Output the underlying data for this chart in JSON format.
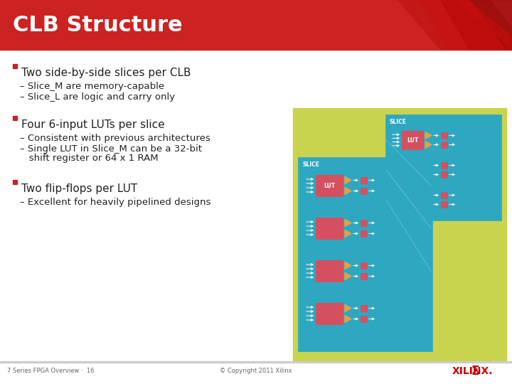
{
  "title": "CLB Structure",
  "title_color": "#FFFFFF",
  "title_bg_color": "#CC2222",
  "slide_bg_color": "#FFFFFF",
  "footer_left": "7 Series FPGA Overview ·  16",
  "footer_center": "© Copyright 2011 Xilinx",
  "diagram_bg": "#C8D44E",
  "slice_bg": "#2EA8C0",
  "slice_border": "#FFFFFF",
  "lut_color": "#D45060",
  "mux_color": "#E8A040",
  "ff_color": "#D45060",
  "clb_text_color": "#C8D44E",
  "slice_label_color": "#FFFFFF",
  "bullet_color": "#CC2222",
  "body_color": "#222222",
  "bullets": [
    [
      95,
      true,
      "Two side-by-side slices per CLB",
      11
    ],
    [
      115,
      false,
      "– Slice_M are memory-capable",
      9.5
    ],
    [
      130,
      false,
      "– Slice_L are logic and carry only",
      9.5
    ],
    [
      168,
      true,
      "Four 6-input LUTs per slice",
      11
    ],
    [
      188,
      false,
      "– Consistent with previous architectures",
      9.5
    ],
    [
      203,
      false,
      "– Single LUT in Slice_M can be a 32-bit",
      9.5
    ],
    [
      216,
      false,
      "   shift register or 64 x 1 RAM",
      9.5
    ],
    [
      258,
      true,
      "Two flip-flops per LUT",
      11
    ],
    [
      278,
      false,
      "– Excellent for heavily pipelined designs",
      9.5
    ]
  ]
}
